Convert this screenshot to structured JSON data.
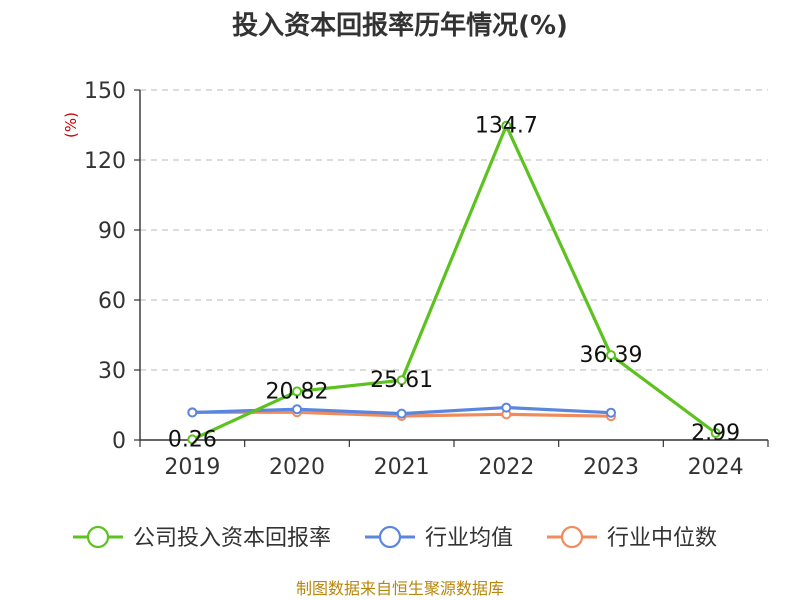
{
  "chart_data": {
    "type": "line",
    "title": "投入资本回报率历年情况(%)",
    "ylabel": "(%)",
    "categories": [
      "2019",
      "2020",
      "2021",
      "2022",
      "2023",
      "2024"
    ],
    "ylim": [
      0,
      150
    ],
    "yticks": [
      0,
      30,
      60,
      90,
      120,
      150
    ],
    "grid": true,
    "legend_position": "bottom",
    "series": [
      {
        "name": "公司投入资本回报率",
        "color": "#5cc21f",
        "values": [
          0.26,
          20.82,
          25.61,
          134.7,
          36.39,
          2.99
        ],
        "labels": [
          "0.26",
          "20.82",
          "25.61",
          "134.7",
          "36.39",
          "2.99"
        ]
      },
      {
        "name": "行业均值",
        "color": "#5b86e0",
        "values": [
          11.8,
          13.2,
          11.3,
          13.9,
          11.7,
          null
        ]
      },
      {
        "name": "行业中位数",
        "color": "#f08b5c",
        "values": [
          11.9,
          11.9,
          10.3,
          11.0,
          10.2,
          null
        ]
      }
    ]
  },
  "footer": {
    "source": "制图数据来自恒生聚源数据库"
  }
}
